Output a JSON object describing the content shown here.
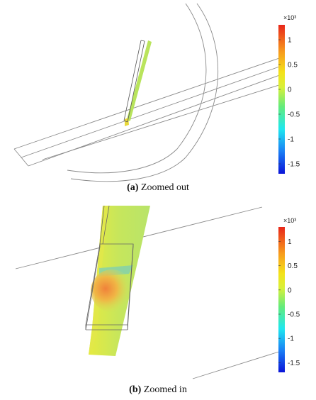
{
  "panels": [
    {
      "caption_label": "(a)",
      "caption_text": "Zoomed out",
      "colorbar": {
        "exponent_label": "×10³",
        "ticks": [
          "1",
          "0.5",
          "0",
          "-0.5",
          "-1",
          "-1.5"
        ],
        "tick_values": [
          1,
          0.5,
          0,
          -0.5,
          -1,
          -1.5
        ],
        "range": [
          -1.7,
          1.3
        ]
      }
    },
    {
      "caption_label": "(b)",
      "caption_text": "Zoomed in",
      "colorbar": {
        "exponent_label": "×10³",
        "ticks": [
          "1",
          "0.5",
          "0",
          "-0.5",
          "-1",
          "-1.5"
        ],
        "tick_values": [
          1,
          0.5,
          0,
          -0.5,
          -1,
          -1.5
        ],
        "range": [
          -1.7,
          1.3
        ]
      }
    }
  ],
  "colors": {
    "colormap": [
      "#0a14d8",
      "#1a7ef5",
      "#1fe7ef",
      "#63eb7c",
      "#d8f03a",
      "#f4e21a",
      "#f79a1d",
      "#e8261a"
    ],
    "wire": "#8a8a8a",
    "outline": "#555555"
  }
}
